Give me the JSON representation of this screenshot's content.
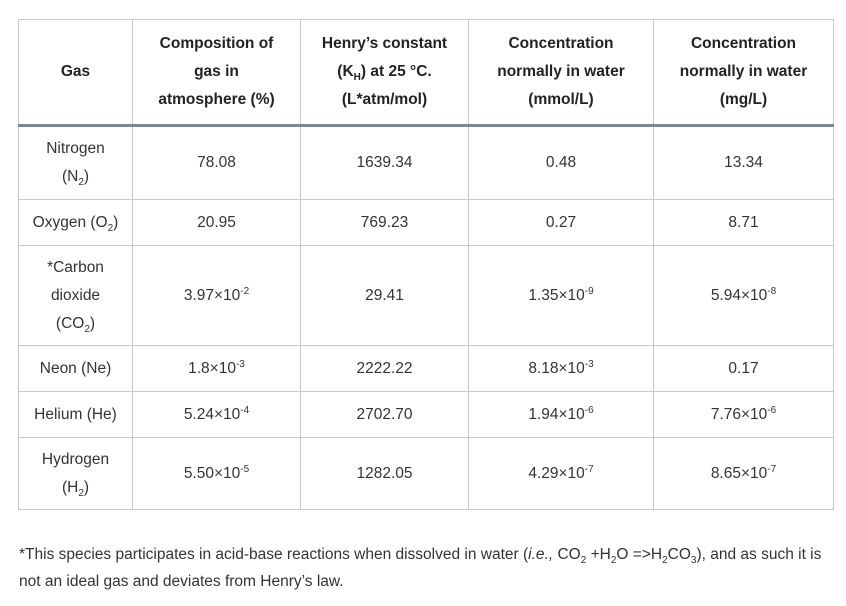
{
  "headers": {
    "gas": "Gas",
    "composition": [
      "Composition of",
      "gas in",
      "atmosphere (%)"
    ],
    "henry": {
      "line1": "Henry’s constant",
      "pre": "(K",
      "sub": "H",
      "post": ") at 25 °C.",
      "line3": "(L*atm/mol)"
    },
    "mmol": [
      "Concentration",
      "normally in water",
      "(mmol/L)"
    ],
    "mg": [
      "Concentration",
      "normally in water",
      "(mg/L)"
    ]
  },
  "rows": [
    {
      "name_lines": [
        [
          "Nitrogen"
        ],
        [
          "(N",
          "2",
          ")"
        ]
      ],
      "composition": {
        "mant": "78.08"
      },
      "henry": "1639.34",
      "mmol": {
        "mant": "0.48"
      },
      "mg": {
        "mant": "13.34"
      }
    },
    {
      "name_lines": [
        [
          "Oxygen (O",
          "2",
          ")"
        ]
      ],
      "composition": {
        "mant": "20.95"
      },
      "henry": "769.23",
      "mmol": {
        "mant": "0.27"
      },
      "mg": {
        "mant": "8.71"
      }
    },
    {
      "name_lines": [
        [
          "*Carbon"
        ],
        [
          "dioxide"
        ],
        [
          "(CO",
          "2",
          ")"
        ]
      ],
      "composition": {
        "mant": "3.97",
        "exp": "-2"
      },
      "henry": "29.41",
      "mmol": {
        "mant": "1.35",
        "exp": "-9"
      },
      "mg": {
        "mant": "5.94",
        "exp": "-8"
      }
    },
    {
      "name_lines": [
        [
          "Neon (Ne)"
        ]
      ],
      "composition": {
        "mant": "1.8",
        "exp": "-3"
      },
      "henry": "2222.22",
      "mmol": {
        "mant": "8.18",
        "exp": "-3"
      },
      "mg": {
        "mant": "0.17"
      }
    },
    {
      "name_lines": [
        [
          "Helium (He)"
        ]
      ],
      "composition": {
        "mant": "5.24",
        "exp": "-4"
      },
      "henry": "2702.70",
      "mmol": {
        "mant": "1.94",
        "exp": "-6"
      },
      "mg": {
        "mant": "7.76",
        "exp": "-6"
      }
    },
    {
      "name_lines": [
        [
          "Hydrogen"
        ],
        [
          "(H",
          "2",
          ")"
        ]
      ],
      "composition": {
        "mant": "5.50",
        "exp": "-5"
      },
      "henry": "1282.05",
      "mmol": {
        "mant": "4.29",
        "exp": "-7"
      },
      "mg": {
        "mant": "8.65",
        "exp": "-7"
      }
    }
  ],
  "row_heights": [
    74,
    46,
    100,
    46,
    46,
    72
  ],
  "times_sign": "×10",
  "footnote": {
    "t1": "*This species participates in acid-base reactions when dissolved in water (",
    "ie": "i.e.,",
    "t2": " CO",
    "sub1": "2",
    "t3": " +H",
    "sub2": "2",
    "t4": "O =>H",
    "sub3": "2",
    "t5": "CO",
    "sub4": "3",
    "t6": "),  and as such it is not an ideal gas and deviates from Henry’s law."
  }
}
